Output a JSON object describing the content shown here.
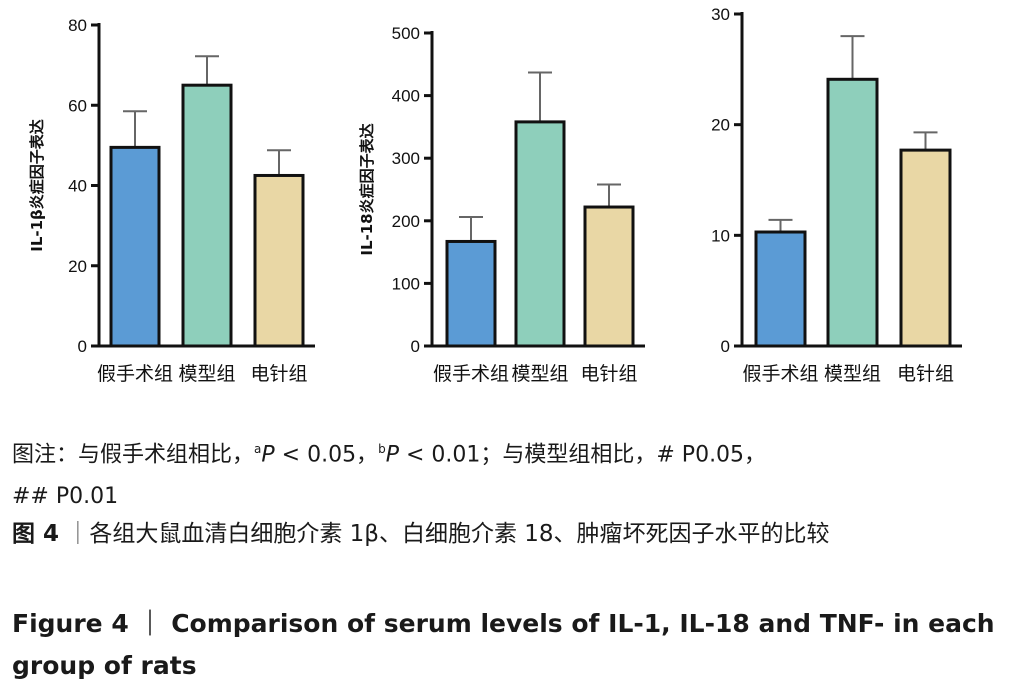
{
  "chart_data": [
    {
      "type": "bar",
      "ylabel": "IL-1β炎症因子表达",
      "categories": [
        "假手术组",
        "模型组",
        "电针组"
      ],
      "values": [
        49.5,
        65,
        42.5
      ],
      "errors": [
        58.5,
        72.2,
        48.8
      ],
      "ylim": [
        0,
        80
      ],
      "yticks": [
        0,
        20,
        40,
        60,
        80
      ],
      "colors": [
        "#5b9bd5",
        "#8ecfbb",
        "#e9d7a5"
      ]
    },
    {
      "type": "bar",
      "ylabel": "IL-18炎症因子表达",
      "categories": [
        "假手术组",
        "模型组",
        "电针组"
      ],
      "values": [
        167,
        358,
        222
      ],
      "errors": [
        206,
        437,
        258
      ],
      "ylim": [
        0,
        500
      ],
      "yticks": [
        0,
        100,
        200,
        300,
        400,
        500
      ],
      "colors": [
        "#5b9bd5",
        "#8ecfbb",
        "#e9d7a5"
      ]
    },
    {
      "type": "bar",
      "ylabel": "",
      "categories": [
        "假手术组",
        "模型组",
        "电针组"
      ],
      "values": [
        10.3,
        24.1,
        17.7
      ],
      "errors": [
        11.4,
        28.0,
        19.3
      ],
      "ylim": [
        0,
        30
      ],
      "yticks": [
        0,
        10,
        20,
        30
      ],
      "colors": [
        "#5b9bd5",
        "#8ecfbb",
        "#e9d7a5"
      ]
    }
  ],
  "caption": {
    "note_prefix": "图注：与假手术组相比，",
    "note_a_sup": "a",
    "note_a_p": "P",
    "note_a_val": " < 0.05，",
    "note_b_sup": "b",
    "note_b_p": "P",
    "note_b_val": " < 0.01；与模型组相比，# P0.05，",
    "note_line2": "## P0.01",
    "fig_cn_label": "图 4",
    "fig_cn_sep": "｜",
    "fig_cn_text": "各组大鼠血清白细胞介素 1β、白细胞介素 18、肿瘤坏死因子水平的比较",
    "fig_en_label": "Figure 4",
    "fig_en_sep": "｜",
    "fig_en_text": "Comparison of serum levels of  IL-1, IL-18 and TNF- in each group of rats"
  }
}
